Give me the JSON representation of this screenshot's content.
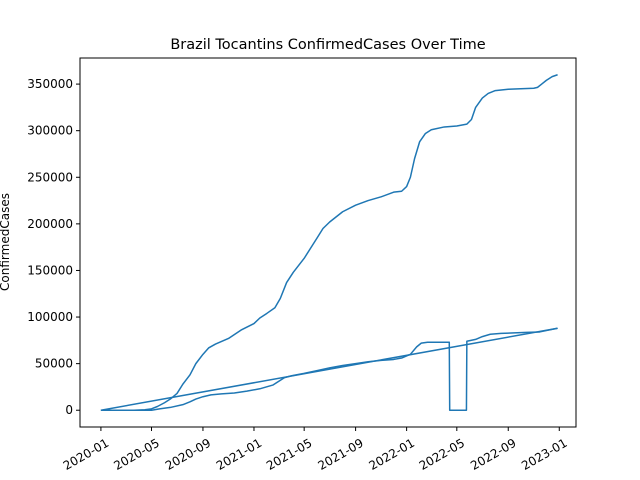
{
  "chart_data": {
    "type": "line",
    "title": "Brazil Tocantins ConfirmedCases Over Time",
    "xlabel": "",
    "ylabel": "ConfirmedCases",
    "xlim": [
      "2019-11-12",
      "2023-02-10"
    ],
    "ylim": [
      -18000,
      378000
    ],
    "x_ticks": [
      "2020-01",
      "2020-05",
      "2020-09",
      "2021-01",
      "2021-05",
      "2021-09",
      "2022-01",
      "2022-05",
      "2022-09",
      "2023-01"
    ],
    "y_ticks": [
      0,
      50000,
      100000,
      150000,
      200000,
      250000,
      300000,
      350000
    ],
    "y_tick_labels": [
      "0",
      "50000",
      "100000",
      "150000",
      "200000",
      "250000",
      "300000",
      "350000"
    ],
    "grid": false,
    "line_color": "#1f77b4",
    "series": [
      {
        "segments": [
          [
            [
              "2020-01-01",
              0
            ],
            [
              "2020-03-15",
              0
            ],
            [
              "2020-05-01",
              0
            ],
            [
              "2020-05-20",
              1500
            ],
            [
              "2020-06-15",
              3000
            ],
            [
              "2020-07-15",
              6000
            ],
            [
              "2020-08-01",
              9000
            ],
            [
              "2020-08-15",
              12000
            ],
            [
              "2020-09-01",
              14500
            ],
            [
              "2020-09-20",
              16500
            ],
            [
              "2020-10-15",
              17500
            ],
            [
              "2020-11-15",
              18500
            ],
            [
              "2020-12-15",
              20500
            ],
            [
              "2021-01-15",
              23000
            ],
            [
              "2021-02-15",
              27000
            ],
            [
              "2021-03-01",
              31000
            ],
            [
              "2021-03-15",
              35000
            ],
            [
              "2021-04-01",
              37000
            ],
            [
              "2021-05-01",
              39500
            ],
            [
              "2021-06-01",
              42500
            ],
            [
              "2021-07-01",
              45500
            ],
            [
              "2021-08-01",
              48000
            ],
            [
              "2021-09-01",
              50000
            ],
            [
              "2021-10-01",
              52000
            ],
            [
              "2021-11-01",
              53500
            ],
            [
              "2021-12-01",
              54500
            ],
            [
              "2021-12-20",
              56000
            ],
            [
              "2022-01-10",
              60000
            ],
            [
              "2022-01-25",
              68000
            ],
            [
              "2022-02-05",
              72000
            ],
            [
              "2022-02-20",
              73000
            ],
            [
              "2022-03-15",
              73000
            ],
            [
              "2022-04-13",
              73000
            ],
            [
              "2022-04-14",
              0
            ],
            [
              "2022-05-24",
              0
            ],
            [
              "2022-05-25",
              74000
            ],
            [
              "2022-06-15",
              76000
            ],
            [
              "2022-07-01",
              79000
            ],
            [
              "2022-07-20",
              81500
            ],
            [
              "2022-08-15",
              82500
            ],
            [
              "2022-09-15",
              83000
            ],
            [
              "2022-10-15",
              83500
            ],
            [
              "2022-11-15",
              84000
            ],
            [
              "2022-12-01",
              85500
            ],
            [
              "2022-12-28",
              88000
            ]
          ],
          [
            [
              "2022-12-28",
              88000
            ],
            [
              "2020-01-01",
              0
            ]
          ],
          [
            [
              "2020-01-01",
              0
            ],
            [
              "2020-03-20",
              0
            ],
            [
              "2020-04-15",
              500
            ],
            [
              "2020-05-01",
              1500
            ],
            [
              "2020-05-15",
              4000
            ],
            [
              "2020-06-01",
              8000
            ],
            [
              "2020-06-15",
              12000
            ],
            [
              "2020-07-01",
              18000
            ],
            [
              "2020-07-15",
              28000
            ],
            [
              "2020-08-01",
              38000
            ],
            [
              "2020-08-15",
              50000
            ],
            [
              "2020-09-01",
              60000
            ],
            [
              "2020-09-15",
              67000
            ],
            [
              "2020-10-01",
              71000
            ],
            [
              "2020-11-01",
              77000
            ],
            [
              "2020-12-01",
              86000
            ],
            [
              "2021-01-01",
              93000
            ],
            [
              "2021-01-15",
              99000
            ],
            [
              "2021-02-01",
              104000
            ],
            [
              "2021-02-20",
              110000
            ],
            [
              "2021-03-05",
              120000
            ],
            [
              "2021-03-20",
              137000
            ],
            [
              "2021-04-05",
              148000
            ],
            [
              "2021-05-01",
              163000
            ],
            [
              "2021-06-01",
              185000
            ],
            [
              "2021-06-15",
              195000
            ],
            [
              "2021-07-01",
              202000
            ],
            [
              "2021-08-01",
              213000
            ],
            [
              "2021-09-01",
              220000
            ],
            [
              "2021-10-01",
              225000
            ],
            [
              "2021-11-01",
              229000
            ],
            [
              "2021-12-01",
              234000
            ],
            [
              "2021-12-20",
              235000
            ],
            [
              "2022-01-01",
              240000
            ],
            [
              "2022-01-10",
              250000
            ],
            [
              "2022-01-20",
              270000
            ],
            [
              "2022-02-01",
              288000
            ],
            [
              "2022-02-15",
              297000
            ],
            [
              "2022-03-01",
              301000
            ],
            [
              "2022-04-01",
              304000
            ],
            [
              "2022-05-01",
              305000
            ],
            [
              "2022-05-25",
              307000
            ],
            [
              "2022-06-05",
              312000
            ],
            [
              "2022-06-15",
              325000
            ],
            [
              "2022-07-01",
              335000
            ],
            [
              "2022-07-15",
              340000
            ],
            [
              "2022-08-01",
              343000
            ],
            [
              "2022-09-01",
              344500
            ],
            [
              "2022-10-01",
              345000
            ],
            [
              "2022-11-01",
              345500
            ],
            [
              "2022-11-10",
              346500
            ],
            [
              "2022-11-20",
              350000
            ],
            [
              "2022-12-01",
              354000
            ],
            [
              "2022-12-15",
              358000
            ],
            [
              "2022-12-28",
              360000
            ]
          ]
        ]
      }
    ]
  }
}
